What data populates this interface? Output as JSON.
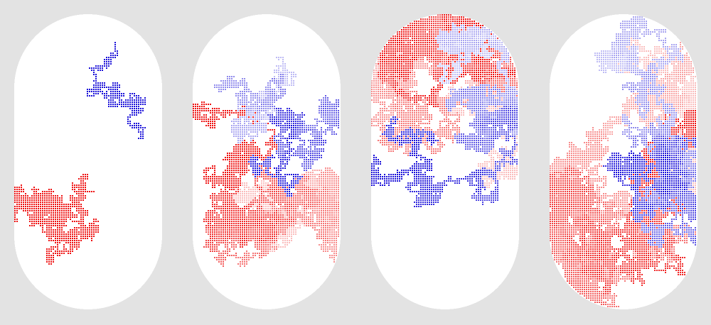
{
  "background_color": "#e3e3e3",
  "container_color": "#ffffff",
  "walker_colors": {
    "blue": "#1a10d8",
    "red": "#ee1111"
  },
  "panels": [
    {
      "name": "panel-1",
      "container_shape": "stadium",
      "blue_walk": {
        "extent": "small",
        "fade": "none"
      },
      "red_walk": {
        "extent": "small",
        "fade": "none"
      }
    },
    {
      "name": "panel-2",
      "container_shape": "stadium",
      "blue_walk": {
        "extent": "medium",
        "fade": "older-steps-lighter"
      },
      "red_walk": {
        "extent": "medium",
        "fade": "older-steps-lighter"
      }
    },
    {
      "name": "panel-3",
      "container_shape": "stadium",
      "blue_walk": {
        "extent": "large",
        "fade": "older-steps-lighter"
      },
      "red_walk": {
        "extent": "large",
        "fade": "older-steps-lighter"
      }
    },
    {
      "name": "panel-4",
      "container_shape": "stadium",
      "blue_walk": {
        "extent": "large",
        "fade": "older-steps-lighter"
      },
      "red_walk": {
        "extent": "very-large",
        "fade": "older-steps-lighter"
      }
    }
  ]
}
